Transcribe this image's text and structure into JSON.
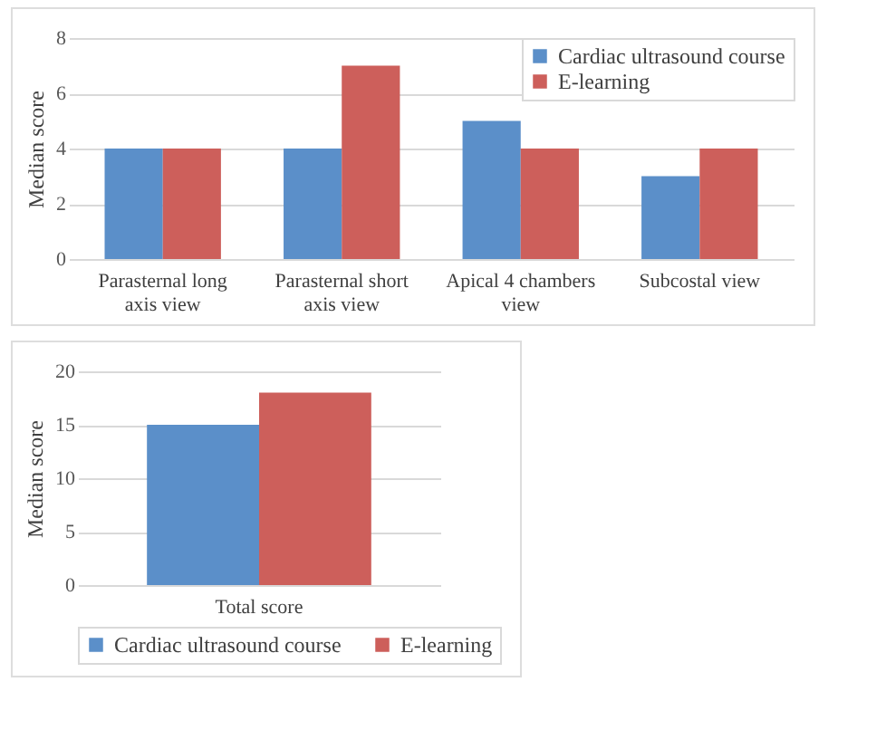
{
  "chart_data": [
    {
      "type": "bar",
      "ylabel": "Median score",
      "categories": [
        "Parasternal long axis view",
        "Parasternal short axis view",
        "Apical 4 chambers view",
        "Subcostal view"
      ],
      "series": [
        {
          "name": "Cardiac ultrasound course",
          "color": "#5b8fc9",
          "values": [
            4,
            4,
            5,
            3
          ]
        },
        {
          "name": "E-learning",
          "color": "#cd5f5b",
          "values": [
            4,
            7,
            4,
            4
          ]
        }
      ],
      "ylim": [
        0,
        8
      ],
      "yticks": [
        0,
        2,
        4,
        6,
        8
      ],
      "grid": "y",
      "legend": "top right"
    },
    {
      "type": "bar",
      "ylabel": "Median score",
      "categories": [
        "Total score"
      ],
      "series": [
        {
          "name": "Cardiac ultrasound course",
          "color": "#5b8fc9",
          "values": [
            15
          ]
        },
        {
          "name": "E-learning",
          "color": "#cd5f5b",
          "values": [
            18
          ]
        }
      ],
      "ylim": [
        0,
        20
      ],
      "yticks": [
        0,
        5,
        10,
        15,
        20
      ],
      "grid": "y",
      "legend": "bottom"
    }
  ]
}
